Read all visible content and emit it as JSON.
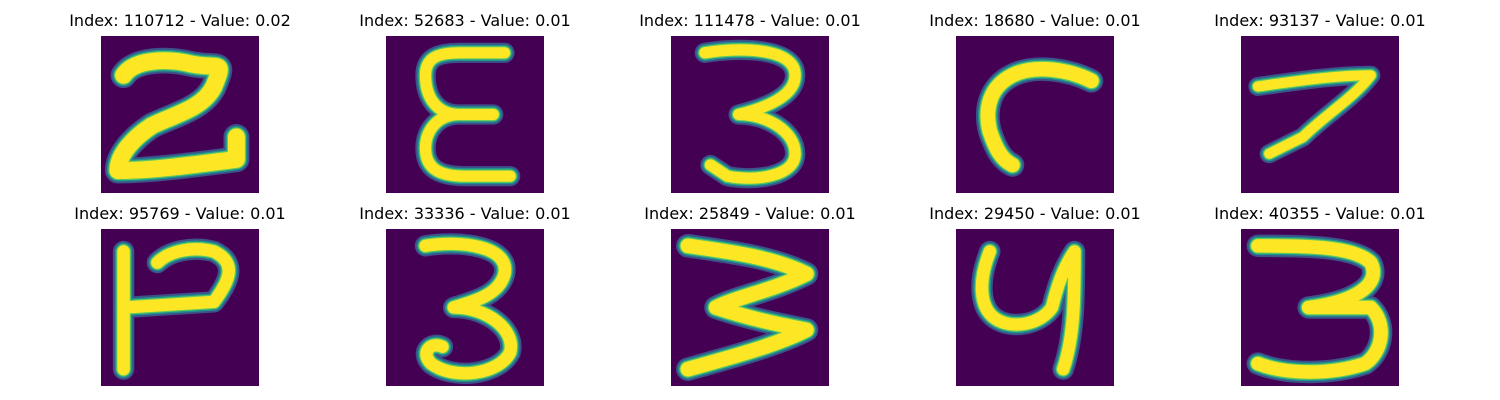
{
  "colors": {
    "background": "#440154",
    "stroke_core": "#fde725",
    "stroke_mid": "#5ec962",
    "stroke_edge": "#21918c",
    "stroke_fringe": "#3b528b"
  },
  "panels": [
    {
      "title": "Index: 110712 - Value: 0.02",
      "glyph": "2"
    },
    {
      "title": "Index: 52683 - Value: 0.01",
      "glyph": "E"
    },
    {
      "title": "Index: 111478 - Value: 0.01",
      "glyph": "3"
    },
    {
      "title": "Index: 18680 - Value: 0.01",
      "glyph": "C"
    },
    {
      "title": "Index: 93137 - Value: 0.01",
      "glyph": "7"
    },
    {
      "title": "Index: 95769 - Value: 0.01",
      "glyph": "P-rotated"
    },
    {
      "title": "Index: 33336 - Value: 0.01",
      "glyph": "3"
    },
    {
      "title": "Index: 25849 - Value: 0.01",
      "glyph": "W-rotated"
    },
    {
      "title": "Index: 29450 - Value: 0.01",
      "glyph": "Y"
    },
    {
      "title": "Index: 40355 - Value: 0.01",
      "glyph": "3"
    }
  ]
}
